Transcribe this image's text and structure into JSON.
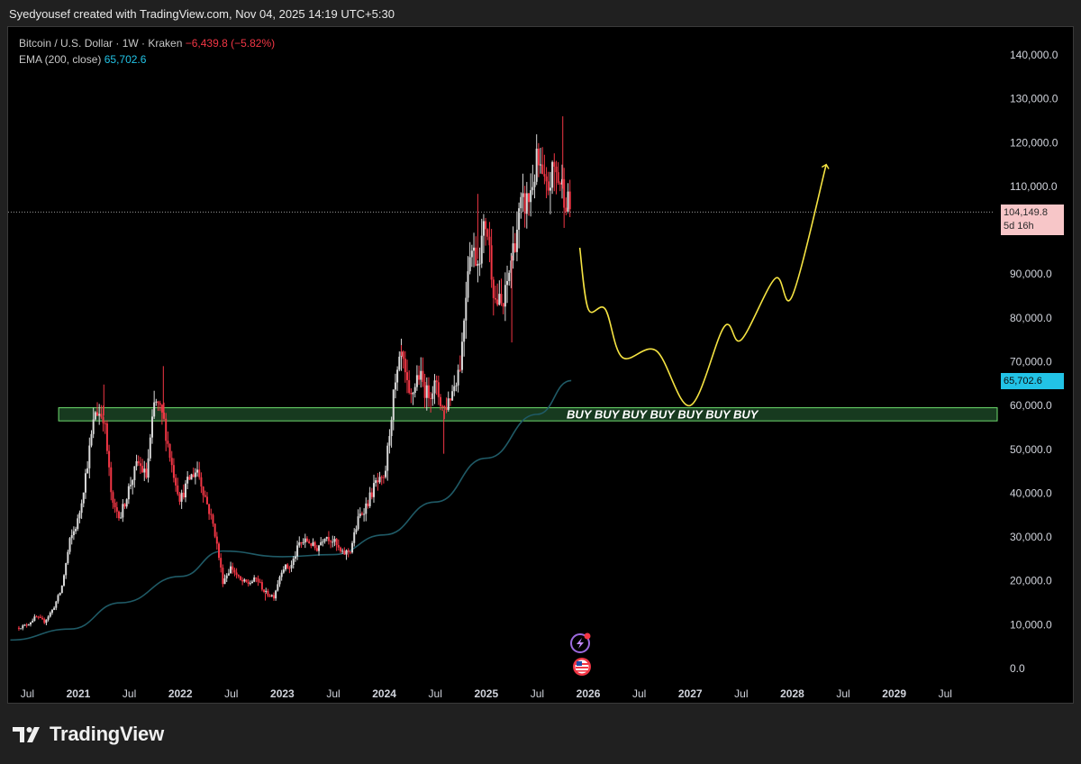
{
  "header": {
    "text": "Syedyousef created with TradingView.com, Nov 04, 2025 14:19 UTC+5:30"
  },
  "legend": {
    "symbol": "Bitcoin / U.S. Dollar · 1W · Kraken",
    "change": "−6,439.8 (−5.82%)",
    "ema_label": "EMA (200, close)",
    "ema_value": "65,702.6"
  },
  "labels": {
    "last_price": "104,149.8",
    "countdown": "5d 16h",
    "ema_price": "65,702.6",
    "buy_zone": "BUY BUY BUY BUY BUY BUY BUY"
  },
  "footer": {
    "brand": "TradingView"
  },
  "colors": {
    "up": "#d9d9d9",
    "down": "#f23645",
    "ema": "#1f5a66",
    "projection": "#f5e342",
    "zone_fill": "#1f4d2a",
    "zone_border": "#6fdc6f",
    "price_badge": "#f7c6c8",
    "ema_badge": "#22c3e6"
  },
  "icons": [
    "lightning-event-icon",
    "us-flag-icon",
    "tradingview-logo-icon"
  ],
  "chart_data": {
    "type": "candlestick",
    "timeframe": "1W",
    "x_tick_labels": [
      "Jul",
      "2021",
      "Jul",
      "2022",
      "Jul",
      "2023",
      "Jul",
      "2024",
      "Jul",
      "2025",
      "Jul",
      "2026",
      "Jul",
      "2027",
      "Jul",
      "2028",
      "Jul",
      "2029",
      "Jul"
    ],
    "y_tick_labels": [
      "140,000.0",
      "130,000.0",
      "120,000.0",
      "110,000.0",
      "90,000.0",
      "80,000.0",
      "70,000.0",
      "60,000.0",
      "50,000.0",
      "40,000.0",
      "30,000.0",
      "20,000.0",
      "10,000.0",
      "0.0"
    ],
    "y_ticks": [
      140000,
      130000,
      120000,
      110000,
      90000,
      80000,
      70000,
      60000,
      50000,
      40000,
      30000,
      20000,
      10000,
      0
    ],
    "ylim": [
      -3000,
      150000
    ],
    "xlim": [
      "2020-05",
      "2029-11"
    ],
    "last_price": 104149.8,
    "price_path": [
      [
        "2020-06",
        9300
      ],
      [
        "2020-07",
        10000
      ],
      [
        "2020-08",
        11800
      ],
      [
        "2020-09",
        10700
      ],
      [
        "2020-10",
        13500
      ],
      [
        "2020-11",
        18000
      ],
      [
        "2020-12",
        29000
      ],
      [
        "2021-01",
        34000
      ],
      [
        "2021-02",
        46000
      ],
      [
        "2021-03",
        58800
      ],
      [
        "2021-04",
        57700
      ],
      [
        "2021-05",
        37000
      ],
      [
        "2021-06",
        35000
      ],
      [
        "2021-07",
        41500
      ],
      [
        "2021-08",
        47000
      ],
      [
        "2021-09",
        43800
      ],
      [
        "2021-10",
        61300
      ],
      [
        "2021-11",
        57000
      ],
      [
        "2021-12",
        46300
      ],
      [
        "2022-01",
        38500
      ],
      [
        "2022-02",
        43200
      ],
      [
        "2022-03",
        45500
      ],
      [
        "2022-04",
        38600
      ],
      [
        "2022-05",
        31800
      ],
      [
        "2022-06",
        19900
      ],
      [
        "2022-07",
        23300
      ],
      [
        "2022-08",
        20000
      ],
      [
        "2022-09",
        19400
      ],
      [
        "2022-10",
        20500
      ],
      [
        "2022-11",
        17200
      ],
      [
        "2022-12",
        16500
      ],
      [
        "2023-01",
        23100
      ],
      [
        "2023-02",
        23100
      ],
      [
        "2023-03",
        28500
      ],
      [
        "2023-04",
        29200
      ],
      [
        "2023-05",
        27200
      ],
      [
        "2023-06",
        30500
      ],
      [
        "2023-07",
        29200
      ],
      [
        "2023-08",
        26000
      ],
      [
        "2023-09",
        27000
      ],
      [
        "2023-10",
        34500
      ],
      [
        "2023-11",
        37700
      ],
      [
        "2023-12",
        42300
      ],
      [
        "2024-01",
        42600
      ],
      [
        "2024-02",
        61100
      ],
      [
        "2024-03",
        71300
      ],
      [
        "2024-04",
        60600
      ],
      [
        "2024-05",
        67500
      ],
      [
        "2024-06",
        62700
      ],
      [
        "2024-07",
        64600
      ],
      [
        "2024-08",
        58900
      ],
      [
        "2024-09",
        63300
      ],
      [
        "2024-10",
        70200
      ],
      [
        "2024-11",
        96400
      ],
      [
        "2024-12",
        93400
      ],
      [
        "2025-01",
        102400
      ],
      [
        "2025-02",
        84300
      ],
      [
        "2025-03",
        82500
      ],
      [
        "2025-04",
        94200
      ],
      [
        "2025-05",
        104600
      ],
      [
        "2025-06",
        107100
      ],
      [
        "2025-07",
        115700
      ],
      [
        "2025-08",
        108200
      ],
      [
        "2025-09",
        114000
      ],
      [
        "2025-10",
        109500
      ],
      [
        "2025-11",
        104150
      ]
    ],
    "swing_highs": [
      [
        "2021-04",
        64800
      ],
      [
        "2021-11",
        69000
      ],
      [
        "2024-03",
        73800
      ],
      [
        "2024-12",
        108300
      ],
      [
        "2025-10",
        126000
      ]
    ],
    "swing_lows": [
      [
        "2022-11",
        15500
      ],
      [
        "2024-08",
        49000
      ],
      [
        "2025-04",
        74400
      ]
    ],
    "ema": {
      "name": "EMA (200, close)",
      "current": 65702.6,
      "points": [
        [
          "2020-05",
          6500
        ],
        [
          "2020-12",
          9000
        ],
        [
          "2021-06",
          15000
        ],
        [
          "2022-01",
          21000
        ],
        [
          "2022-06",
          26800
        ],
        [
          "2023-01",
          25500
        ],
        [
          "2023-07",
          26000
        ],
        [
          "2024-01",
          30500
        ],
        [
          "2024-07",
          38000
        ],
        [
          "2025-01",
          48000
        ],
        [
          "2025-07",
          58000
        ],
        [
          "2025-11",
          65700
        ]
      ]
    },
    "buy_zone": {
      "from": 56500,
      "to": 59500,
      "start": "2020-11",
      "label": "BUY BUY BUY BUY BUY BUY BUY"
    },
    "projection": [
      [
        "2025-12",
        96000
      ],
      [
        "2026-01",
        82000
      ],
      [
        "2026-03",
        82000
      ],
      [
        "2026-05",
        71000
      ],
      [
        "2026-09",
        72500
      ],
      [
        "2027-01",
        60000
      ],
      [
        "2027-05",
        78000
      ],
      [
        "2027-07",
        75000
      ],
      [
        "2027-11",
        89000
      ],
      [
        "2028-01",
        85000
      ],
      [
        "2028-05",
        115000
      ]
    ]
  }
}
